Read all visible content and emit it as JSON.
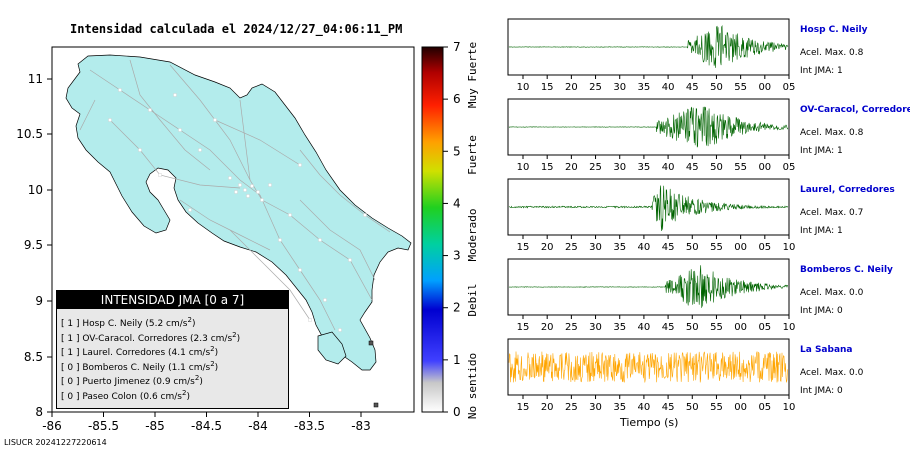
{
  "map": {
    "title": "Intensidad calculada el 2024/12/27_04:06:11_PM",
    "lon_ticks": [
      "-86",
      "-85.5",
      "-85",
      "-84.5",
      "-84",
      "-83.5",
      "-83"
    ],
    "lat_ticks": [
      "11",
      "10.5",
      "10",
      "9.5",
      "9",
      "8.5",
      "8"
    ],
    "land_color": "#b3ecec"
  },
  "colorbar": {
    "ticks": [
      "0",
      "1",
      "2",
      "3",
      "4",
      "5",
      "6",
      "7"
    ],
    "categories": [
      "No sentido",
      "Debil",
      "Moderado",
      "Fuerte",
      "Muy Fuerte"
    ]
  },
  "legend": {
    "title": "INTENSIDAD JMA [0 a 7]",
    "rows": [
      {
        "level": "[ 1 ]",
        "name": "Hosp C. Neily",
        "accel": "(5.2 cm/s",
        "sup": "2",
        "close": ")"
      },
      {
        "level": "[ 1 ]",
        "name": "OV-Caracol. Corredores",
        "accel": "(2.3 cm/s",
        "sup": "2",
        "close": ")"
      },
      {
        "level": "[ 1 ]",
        "name": "Laurel. Corredores",
        "accel": "(4.1 cm/s",
        "sup": "2",
        "close": ")"
      },
      {
        "level": "[ 0 ]",
        "name": "Bomberos C. Neily",
        "accel": "(1.1 cm/s",
        "sup": "2",
        "close": ")"
      },
      {
        "level": "[ 0 ]",
        "name": "Puerto Jimenez",
        "accel": "(0.9 cm/s",
        "sup": "2",
        "close": ")"
      },
      {
        "level": "[ 0 ]",
        "name": "Paseo Colon",
        "accel": "(0.6 cm/s",
        "sup": "2",
        "close": ")"
      }
    ]
  },
  "stations": [
    {
      "name": "Hosp C. Neily",
      "accel": "Acel. Max. 0.8",
      "int": "Int JMA: 1",
      "onset": 44.5,
      "peak": 51,
      "amp": 0.95,
      "noise": 0.01,
      "color": "#006400"
    },
    {
      "name": "OV-Caracol, Corredore",
      "accel": "Acel. Max. 0.8",
      "int": "Int JMA: 1",
      "onset": 38,
      "peak": 48,
      "amp": 0.95,
      "noise": 0.01,
      "color": "#006400"
    },
    {
      "name": "Laurel, Corredores",
      "accel": "Acel. Max. 0.7",
      "int": "Int JMA: 1",
      "onset": 42,
      "peak": 44,
      "amp": 0.95,
      "noise": 0.03,
      "color": "#006400"
    },
    {
      "name": "Bomberos C. Neily",
      "accel": "Acel. Max. 0.0",
      "int": "Int JMA: 0",
      "onset": 45,
      "peak": 52,
      "amp": 0.95,
      "noise": 0.01,
      "color": "#006400"
    },
    {
      "name": "La Sabana",
      "accel": "Acel. Max. 0.0",
      "int": "Int JMA: 0",
      "onset": 0,
      "peak": 0,
      "amp": 0,
      "noise": 0.6,
      "color": "#ffa500"
    }
  ],
  "chart_data": [
    {
      "type": "heatmap",
      "title": "Intensidad calculada el 2024/12/27_04:06:11_PM",
      "xlim": [
        -86,
        -83.5
      ],
      "ylim": [
        8,
        11.3
      ],
      "colorbar_range": [
        0,
        7
      ],
      "colorbar_labels": [
        "No sentido",
        "Debil",
        "Moderado",
        "Fuerte",
        "Muy Fuerte"
      ]
    },
    {
      "type": "line",
      "xlabel": "Tiempo (s)",
      "x_ticks_panels_1_2": [
        "10",
        "15",
        "20",
        "25",
        "30",
        "35",
        "40",
        "45",
        "50",
        "55",
        "00",
        "05"
      ],
      "x_ticks_panels_3_5": [
        "15",
        "20",
        "25",
        "30",
        "35",
        "40",
        "45",
        "50",
        "55",
        "00",
        "05",
        "10"
      ],
      "series": [
        {
          "name": "Hosp C. Neily",
          "pga_label": "0.8",
          "jma": 1
        },
        {
          "name": "OV-Caracol, Corredore",
          "pga_label": "0.8",
          "jma": 1
        },
        {
          "name": "Laurel, Corredores",
          "pga_label": "0.7",
          "jma": 1
        },
        {
          "name": "Bomberos C. Neily",
          "pga_label": "0.0",
          "jma": 0
        },
        {
          "name": "La Sabana",
          "pga_label": "0.0",
          "jma": 0
        }
      ]
    }
  ],
  "axis": {
    "time_label": "Tiempo (s)"
  },
  "footer": "LISUCR 20241227220614"
}
